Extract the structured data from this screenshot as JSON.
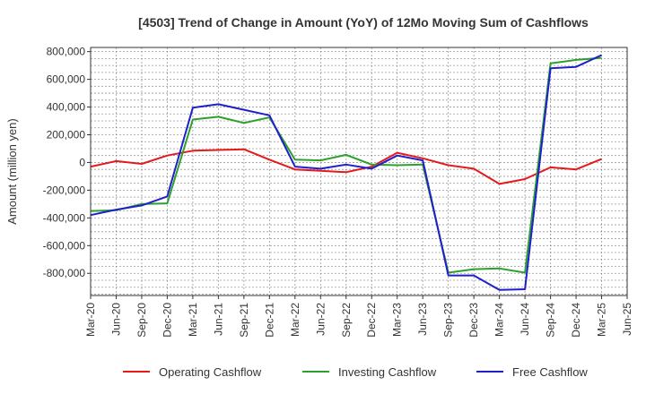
{
  "chart_data": {
    "type": "line",
    "title": "[4503]  Trend of Change in Amount (YoY) of 12Mo Moving Sum of Cashflows",
    "xlabel": "",
    "ylabel": "Amount (million yen)",
    "ylim": [
      -960000,
      830000
    ],
    "yticks": [
      800000,
      600000,
      400000,
      200000,
      0,
      -200000,
      -400000,
      -600000,
      -800000
    ],
    "ytick_labels": [
      "800,000",
      "600,000",
      "400,000",
      "200,000",
      "0",
      "-200,000",
      "-400,000",
      "-600,000",
      "-800,000"
    ],
    "x_tick_labels": [
      "Mar-20",
      "Jun-20",
      "Sep-20",
      "Dec-20",
      "Mar-21",
      "Jun-21",
      "Sep-21",
      "Dec-21",
      "Mar-22",
      "Jun-22",
      "Sep-22",
      "Dec-22",
      "Mar-23",
      "Jun-23",
      "Sep-23",
      "Dec-23",
      "Mar-24",
      "Jun-24",
      "Sep-24",
      "Dec-24",
      "Mar-25",
      "Jun-25"
    ],
    "categories": [
      "Mar-20",
      "Jun-20",
      "Sep-20",
      "Dec-20",
      "Mar-21",
      "Jun-21",
      "Sep-21",
      "Dec-21",
      "Mar-22",
      "Jun-22",
      "Sep-22",
      "Dec-22",
      "Mar-23",
      "Jun-23",
      "Sep-23",
      "Dec-23",
      "Mar-24",
      "Jun-24",
      "Sep-24",
      "Dec-24",
      "Mar-25"
    ],
    "grid": true,
    "legend_position": "bottom",
    "series": [
      {
        "name": "Operating Cashflow",
        "color": "#e41a1c",
        "values": [
          -30000,
          10000,
          -10000,
          50000,
          85000,
          90000,
          95000,
          20000,
          -50000,
          -60000,
          -70000,
          -30000,
          70000,
          30000,
          -20000,
          -45000,
          -155000,
          -120000,
          -35000,
          -50000,
          25000
        ]
      },
      {
        "name": "Investing Cashflow",
        "color": "#2ca02c",
        "values": [
          -350000,
          -345000,
          -300000,
          -295000,
          310000,
          330000,
          285000,
          325000,
          20000,
          15000,
          55000,
          -15000,
          -20000,
          -15000,
          -795000,
          -770000,
          -765000,
          -795000,
          715000,
          740000,
          755000
        ]
      },
      {
        "name": "Free Cashflow",
        "color": "#1f1fcc",
        "values": [
          -380000,
          -340000,
          -310000,
          -245000,
          395000,
          420000,
          380000,
          340000,
          -30000,
          -45000,
          -15000,
          -45000,
          50000,
          15000,
          -815000,
          -815000,
          -920000,
          -915000,
          680000,
          690000,
          775000
        ]
      }
    ]
  }
}
